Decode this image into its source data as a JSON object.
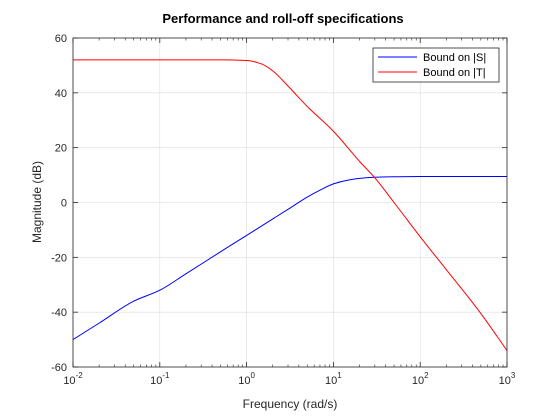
{
  "chart_data": {
    "type": "line",
    "title": "Performance and roll-off specifications",
    "xlabel": "Frequency (rad/s)",
    "ylabel": "Magnitude (dB)",
    "xscale": "log",
    "xlim": [
      0.01,
      1000
    ],
    "ylim": [
      -60,
      60
    ],
    "xticks": [
      0.01,
      0.1,
      1,
      10,
      100,
      1000
    ],
    "xtick_labels": [
      {
        "base": "10",
        "exp": "-2"
      },
      {
        "base": "10",
        "exp": "-1"
      },
      {
        "base": "10",
        "exp": "0"
      },
      {
        "base": "10",
        "exp": "1"
      },
      {
        "base": "10",
        "exp": "2"
      },
      {
        "base": "10",
        "exp": "3"
      }
    ],
    "yticks": [
      -60,
      -40,
      -20,
      0,
      20,
      40,
      60
    ],
    "ytick_labels": [
      "-60",
      "-40",
      "-20",
      "0",
      "20",
      "40",
      "60"
    ],
    "grid": true,
    "legend_position": "top-right",
    "series": [
      {
        "name": "Bound on |S|",
        "color": "#0000ff",
        "x": [
          0.01,
          0.02,
          0.05,
          0.1,
          0.2,
          0.5,
          1,
          2,
          3,
          5,
          7,
          10,
          15,
          20,
          30,
          50,
          100,
          200,
          500,
          1000
        ],
        "y": [
          -50,
          -44,
          -36,
          -32,
          -26,
          -18,
          -12,
          -6,
          -2.5,
          2,
          4.5,
          6.8,
          8.2,
          8.8,
          9.2,
          9.4,
          9.5,
          9.5,
          9.5,
          9.5
        ]
      },
      {
        "name": "Bound on |T|",
        "color": "#ff0000",
        "x": [
          0.01,
          0.1,
          0.5,
          1,
          1.5,
          2,
          3,
          5,
          10,
          20,
          30,
          50,
          100,
          200,
          500,
          1000
        ],
        "y": [
          52,
          52,
          52,
          51.8,
          50.5,
          48,
          42.5,
          35,
          26,
          15,
          9,
          0,
          -12.5,
          -24.5,
          -40.5,
          -54
        ]
      }
    ]
  }
}
